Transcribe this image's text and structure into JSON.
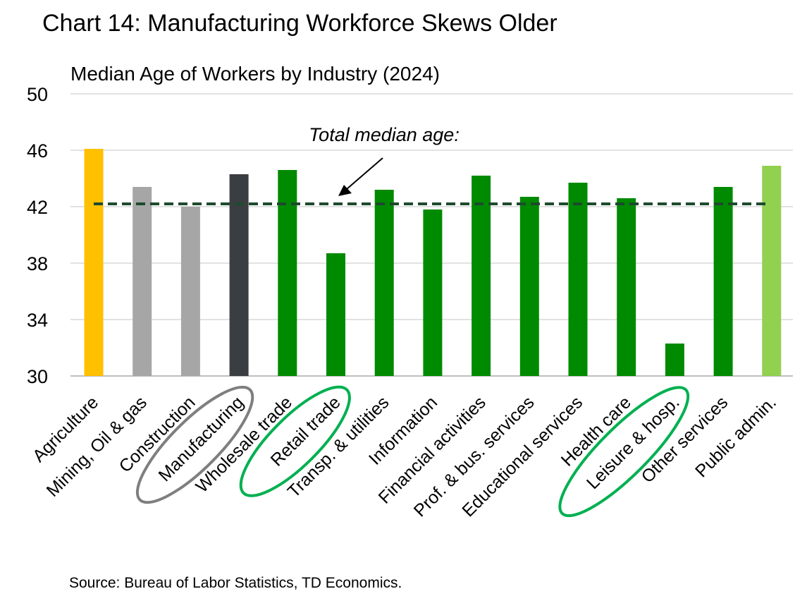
{
  "chart_data": {
    "type": "bar",
    "title": "Chart 14: Manufacturing Workforce Skews Older",
    "subtitle": "Median Age of Workers by Industry (2024)",
    "source": "Source: Bureau of Labor Statistics, TD Economics.",
    "categories": [
      "Agriculture",
      "Mining, Oil & gas",
      "Construction",
      "Manufacturing",
      "Wholesale trade",
      "Retail trade",
      "Transp. & utilities",
      "Information",
      "Financial activities",
      "Prof. & bus. services",
      "Educational services",
      "Health care",
      "Leisure & hosp.",
      "Other services",
      "Public admin."
    ],
    "values": [
      46.1,
      43.4,
      42.0,
      44.3,
      44.6,
      38.7,
      43.2,
      41.8,
      44.2,
      42.7,
      43.7,
      42.6,
      32.3,
      43.4,
      44.9
    ],
    "colors": [
      "#FFC000",
      "#A6A6A6",
      "#A6A6A6",
      "#3A3D41",
      "#008A00",
      "#008A00",
      "#008A00",
      "#008A00",
      "#008A00",
      "#008A00",
      "#008A00",
      "#008A00",
      "#008A00",
      "#008A00",
      "#92D050"
    ],
    "ylim": [
      30,
      50
    ],
    "yticks": [
      30,
      34,
      38,
      42,
      46,
      50
    ],
    "grid": true,
    "reference_line": {
      "value": 42.2,
      "label": "Total median age:",
      "color": "#1E4A2E"
    },
    "highlighted_categories": [
      {
        "category": "Manufacturing",
        "color": "#7F7F7F"
      },
      {
        "category": "Retail trade",
        "color": "#00B050"
      },
      {
        "category": "Leisure & hosp.",
        "color": "#00B050"
      }
    ]
  }
}
